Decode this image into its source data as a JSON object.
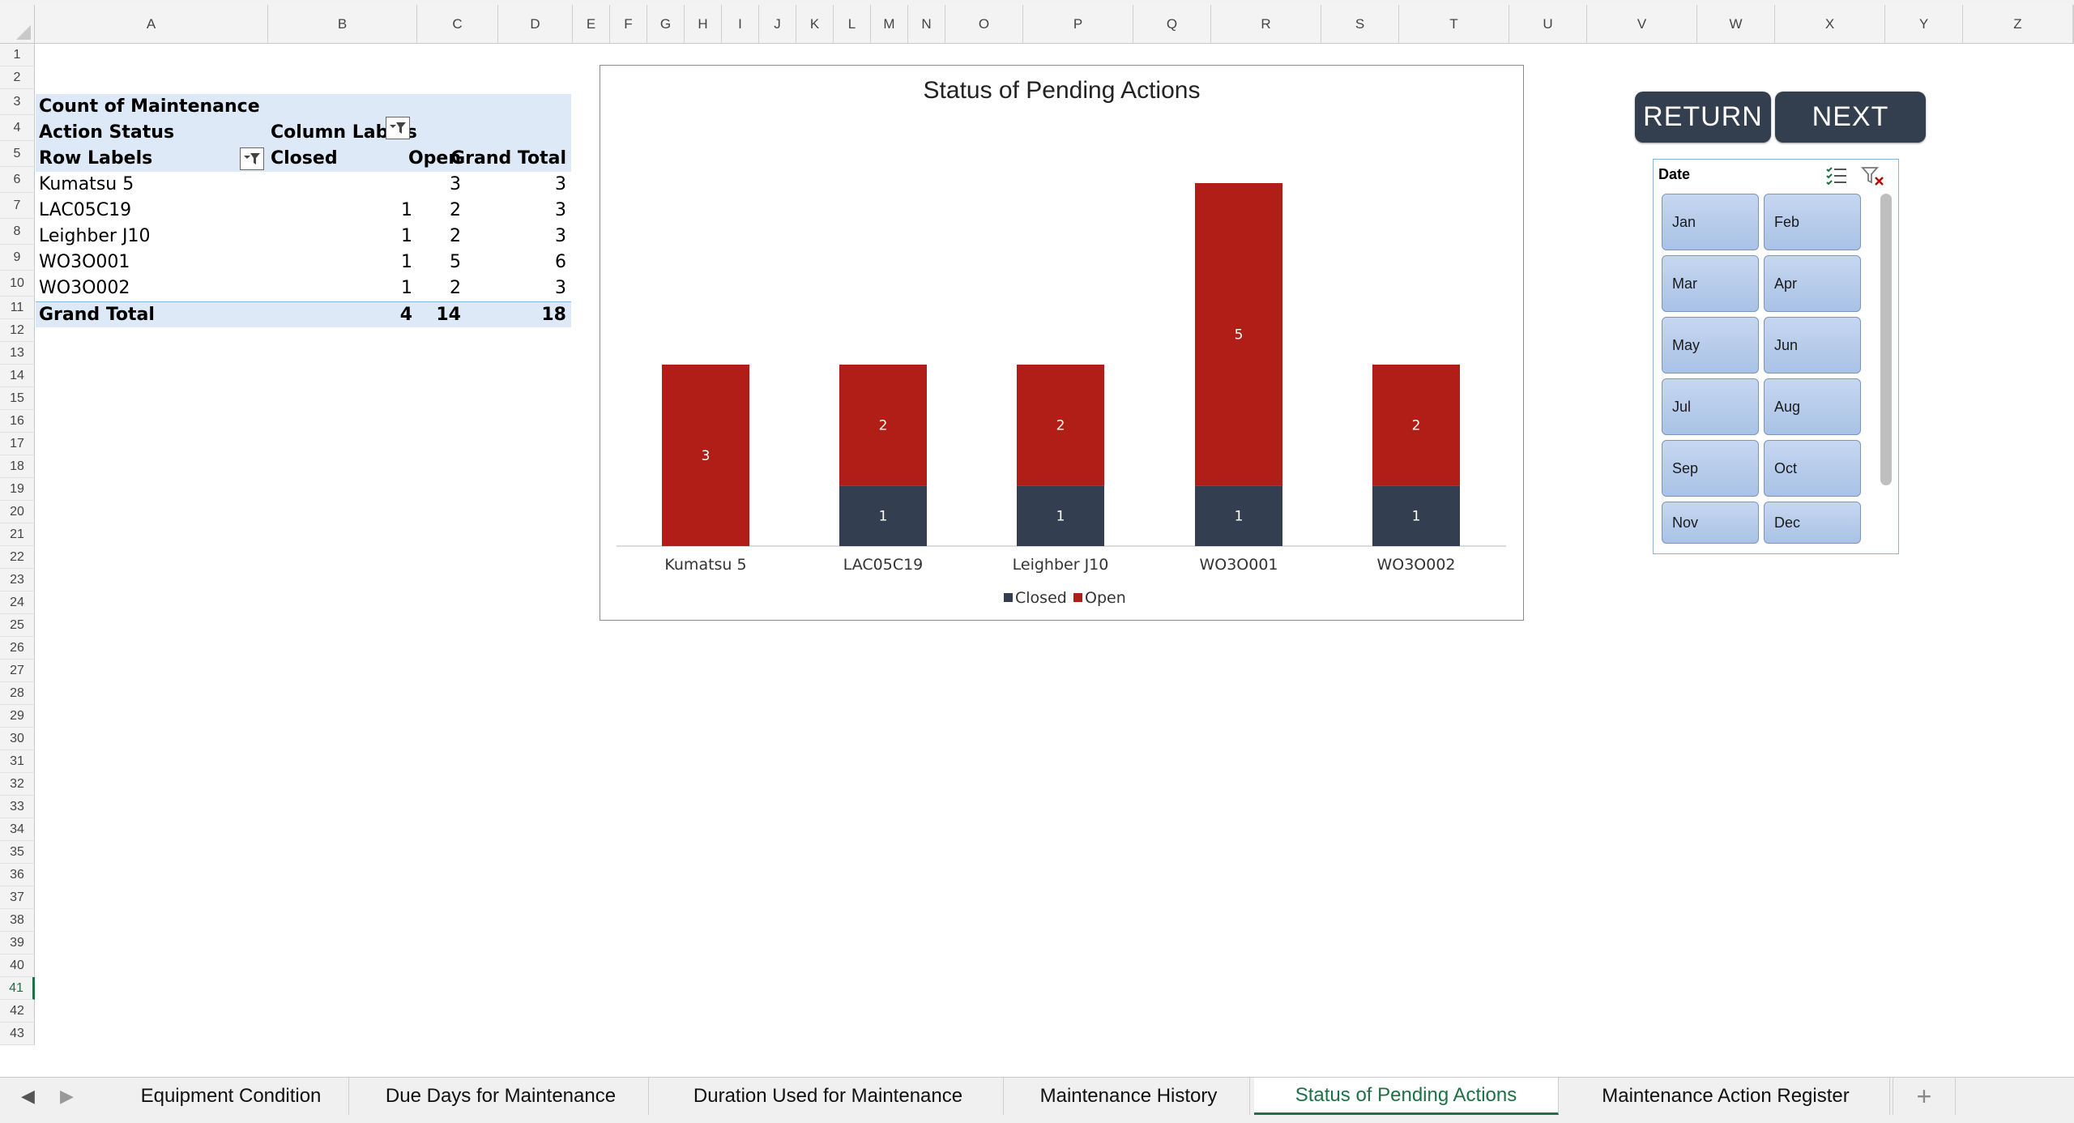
{
  "columns": [
    "A",
    "B",
    "C",
    "D",
    "E",
    "F",
    "G",
    "H",
    "I",
    "J",
    "K",
    "L",
    "M",
    "N",
    "O",
    "P",
    "Q",
    "R",
    "S",
    "T",
    "U",
    "V",
    "W",
    "X",
    "Y",
    "Z"
  ],
  "rows": [
    "1",
    "2",
    "3",
    "4",
    "5",
    "6",
    "7",
    "8",
    "9",
    "10",
    "11",
    "12",
    "13",
    "14",
    "15",
    "16",
    "17",
    "18",
    "19",
    "20",
    "21",
    "22",
    "23",
    "24",
    "25",
    "26",
    "27",
    "28",
    "29",
    "30",
    "31",
    "32",
    "33",
    "34",
    "35",
    "36",
    "37",
    "38",
    "39",
    "40",
    "41",
    "42",
    "43"
  ],
  "selected_row": "41",
  "pivot": {
    "value_caption": "Count of Maintenance",
    "filter_field": "Action Status",
    "column_labels": "Column Labels",
    "row_labels": "Row Labels",
    "col_closed": "Closed",
    "col_open": "Open",
    "col_grand_total": "Grand Total",
    "rows": [
      {
        "label": "Kumatsu 5",
        "closed": "",
        "open": "3",
        "total": "3"
      },
      {
        "label": "LAC05C19",
        "closed": "1",
        "open": "2",
        "total": "3"
      },
      {
        "label": "Leighber J10",
        "closed": "1",
        "open": "2",
        "total": "3"
      },
      {
        "label": "WO3O001",
        "closed": "1",
        "open": "5",
        "total": "6"
      },
      {
        "label": "WO3O002",
        "closed": "1",
        "open": "2",
        "total": "3"
      }
    ],
    "grand_total": {
      "label": "Grand Total",
      "closed": "4",
      "open": "14",
      "total": "18"
    }
  },
  "chart_data": {
    "type": "bar",
    "stacked": true,
    "title": "Status of Pending Actions",
    "categories": [
      "Kumatsu 5",
      "LAC05C19",
      "Leighber J10",
      "WO3O001",
      "WO3O002"
    ],
    "series": [
      {
        "name": "Closed",
        "color": "#333f50",
        "values": [
          0,
          1,
          1,
          1,
          1
        ]
      },
      {
        "name": "Open",
        "color": "#b01e17",
        "values": [
          3,
          2,
          2,
          5,
          2
        ]
      }
    ],
    "legend": "bottom",
    "grid": false
  },
  "buttons": {
    "return_label": "RETURN",
    "next_label": "NEXT"
  },
  "slicer": {
    "title": "Date",
    "items": [
      "Jan",
      "Feb",
      "Mar",
      "Apr",
      "May",
      "Jun",
      "Jul",
      "Aug",
      "Sep",
      "Oct",
      "Nov",
      "Dec"
    ],
    "icons": [
      "multi-select-icon",
      "clear-filter-icon"
    ]
  },
  "tabs": [
    {
      "label": "Equipment Condition",
      "active": false
    },
    {
      "label": "Due Days for Maintenance",
      "active": false
    },
    {
      "label": "Duration Used for Maintenance",
      "active": false
    },
    {
      "label": "Maintenance History",
      "active": false
    },
    {
      "label": "Status of Pending Actions",
      "active": true
    },
    {
      "label": "Maintenance Action Register",
      "active": false
    }
  ],
  "add_sheet_label": "+",
  "colors": {
    "accent": "#1e7145",
    "pivot_header": "#dde9f6",
    "slicer_item": "#b6cbea",
    "button": "#333e4e"
  }
}
